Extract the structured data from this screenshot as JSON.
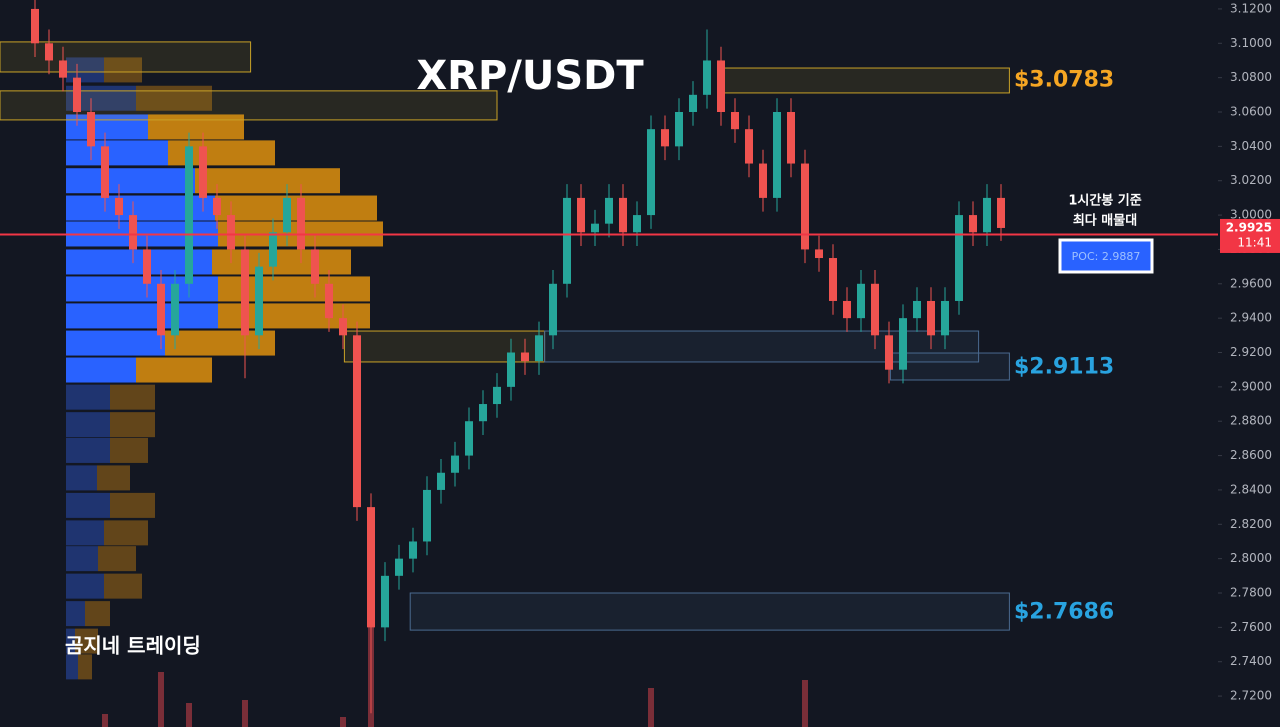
{
  "chart_data": {
    "type": "candlestick",
    "title": "XRP/USDT",
    "watermark": "곰지네 트레이딩",
    "annotation": [
      "1시간봉 기준",
      "최다 매물대"
    ],
    "poc": {
      "value": 2.9887,
      "label": "POC: 2.9887",
      "color": "#f23645"
    },
    "last_price": {
      "value": 2.9925,
      "label": "2.9925",
      "time": "11:41",
      "color": "#f23645"
    },
    "ylim": [
      2.702,
      3.1252
    ],
    "yticks": [
      {
        "value": 3.12,
        "label": "3.1200"
      },
      {
        "value": 3.1,
        "label": "3.1000"
      },
      {
        "value": 3.08,
        "label": "3.0800"
      },
      {
        "value": 3.06,
        "label": "3.0600"
      },
      {
        "value": 3.04,
        "label": "3.0400"
      },
      {
        "value": 3.02,
        "label": "3.0200"
      },
      {
        "value": 3.0,
        "label": "3.0000"
      },
      {
        "value": 2.98,
        "label": "2.9800"
      },
      {
        "value": 2.96,
        "label": "2.9600"
      },
      {
        "value": 2.94,
        "label": "2.9400"
      },
      {
        "value": 2.92,
        "label": "2.9200"
      },
      {
        "value": 2.9,
        "label": "2.9000"
      },
      {
        "value": 2.88,
        "label": "2.8800"
      },
      {
        "value": 2.86,
        "label": "2.8600"
      },
      {
        "value": 2.84,
        "label": "2.8400"
      },
      {
        "value": 2.82,
        "label": "2.8200"
      },
      {
        "value": 2.8,
        "label": "2.8000"
      },
      {
        "value": 2.78,
        "label": "2.7800"
      },
      {
        "value": 2.76,
        "label": "2.7600"
      },
      {
        "value": 2.74,
        "label": "2.7400"
      },
      {
        "value": 2.72,
        "label": "2.7200"
      }
    ],
    "up_color": "#26a69a",
    "down_color": "#ef5350",
    "open": [
      3.12,
      3.1,
      3.09,
      3.08,
      3.06,
      3.04,
      3.01,
      3.0,
      2.98,
      2.96,
      2.93,
      2.96,
      3.04,
      3.01,
      3.0,
      2.98,
      2.93,
      2.97,
      2.99,
      3.01,
      2.98,
      2.96,
      2.94,
      2.93,
      2.83,
      2.76,
      2.79,
      2.8,
      2.81,
      2.84,
      2.85,
      2.86,
      2.88,
      2.89,
      2.9,
      2.92,
      2.915,
      2.93,
      2.96,
      3.01,
      2.99,
      2.995,
      3.01,
      2.99,
      3.0,
      3.05,
      3.04,
      3.06,
      3.07,
      3.09,
      3.06,
      3.05,
      3.03,
      3.01,
      3.06,
      3.03,
      2.98,
      2.975,
      2.95,
      2.94,
      2.96,
      2.93,
      2.91,
      2.94,
      2.95,
      2.93,
      2.95,
      3.0,
      2.99,
      3.01
    ],
    "high": [
      3.128,
      3.108,
      3.098,
      3.088,
      3.068,
      3.048,
      3.018,
      3.008,
      2.988,
      2.968,
      2.968,
      3.048,
      3.048,
      3.018,
      3.008,
      2.988,
      2.978,
      2.998,
      3.018,
      3.018,
      2.988,
      2.968,
      2.948,
      2.938,
      2.838,
      2.798,
      2.808,
      2.818,
      2.848,
      2.858,
      2.868,
      2.888,
      2.898,
      2.908,
      2.928,
      2.928,
      2.938,
      2.968,
      3.018,
      3.018,
      3.003,
      3.018,
      3.018,
      3.008,
      3.058,
      3.058,
      3.068,
      3.078,
      3.108,
      3.098,
      3.068,
      3.058,
      3.038,
      3.068,
      3.068,
      3.038,
      2.988,
      2.983,
      2.958,
      2.968,
      2.968,
      2.938,
      2.948,
      2.958,
      2.958,
      2.958,
      3.008,
      3.008,
      3.018,
      3.018
    ],
    "low": [
      3.092,
      3.082,
      3.072,
      3.052,
      3.032,
      3.002,
      2.992,
      2.972,
      2.952,
      2.922,
      2.922,
      2.952,
      3.002,
      2.992,
      2.972,
      2.905,
      2.922,
      2.962,
      2.982,
      2.972,
      2.952,
      2.932,
      2.922,
      2.822,
      2.71,
      2.752,
      2.782,
      2.792,
      2.802,
      2.832,
      2.842,
      2.852,
      2.872,
      2.882,
      2.892,
      2.907,
      2.907,
      2.922,
      2.952,
      2.982,
      2.982,
      2.987,
      2.982,
      2.982,
      2.992,
      3.032,
      3.032,
      3.052,
      3.062,
      3.052,
      3.042,
      3.022,
      3.002,
      3.002,
      3.022,
      2.972,
      2.967,
      2.942,
      2.932,
      2.932,
      2.922,
      2.902,
      2.902,
      2.932,
      2.922,
      2.922,
      2.942,
      2.982,
      2.982,
      2.985
    ],
    "close": [
      3.1,
      3.09,
      3.08,
      3.06,
      3.04,
      3.01,
      3.0,
      2.98,
      2.96,
      2.93,
      2.96,
      3.04,
      3.01,
      3.0,
      2.98,
      2.93,
      2.97,
      2.99,
      3.01,
      2.98,
      2.96,
      2.94,
      2.93,
      2.83,
      2.76,
      2.79,
      2.8,
      2.81,
      2.84,
      2.85,
      2.86,
      2.88,
      2.89,
      2.9,
      2.92,
      2.915,
      2.93,
      2.96,
      3.01,
      2.99,
      2.995,
      3.01,
      2.99,
      3.0,
      3.05,
      3.04,
      3.06,
      3.07,
      3.09,
      3.06,
      3.05,
      3.03,
      3.01,
      3.06,
      3.03,
      2.98,
      2.975,
      2.95,
      2.94,
      2.96,
      2.93,
      2.91,
      2.94,
      2.95,
      2.93,
      2.95,
      3.0,
      2.99,
      3.01,
      2.9925
    ],
    "volume_bars": {
      "index": [
        5,
        9,
        11,
        15,
        22,
        24,
        44,
        55
      ],
      "values": [
        13,
        55,
        24,
        27,
        10,
        187,
        39,
        47
      ],
      "color": "#7a2e38"
    },
    "profile": {
      "levels": [
        3.0845,
        3.068,
        3.0513,
        3.0362,
        3.02,
        3.0041,
        2.989,
        2.9727,
        2.957,
        2.9413,
        2.9255,
        2.9098,
        2.894,
        2.878,
        2.863,
        2.847,
        2.831,
        2.815,
        2.8,
        2.784,
        2.768,
        2.752,
        2.737
      ],
      "buy": [
        38,
        70,
        82,
        102,
        129,
        149,
        152,
        146,
        152,
        152,
        99,
        70,
        44,
        44,
        44,
        31,
        44,
        38,
        32,
        38,
        19,
        9,
        12
      ],
      "sell": [
        38,
        76,
        96,
        107,
        145,
        162,
        165,
        139,
        152,
        152,
        110,
        76,
        45,
        45,
        38,
        33,
        45,
        44,
        38,
        38,
        25,
        23,
        14
      ],
      "value_area": [
        2.9098,
        3.0513
      ],
      "buy_color": "#2962ff",
      "sell_color": "#d4890f",
      "buy_dim_color": "#1f3470",
      "sell_dim_color": "#6b4a1a"
    },
    "zones": [
      {
        "top": 3.1008,
        "bottom": 3.0833,
        "start": -2.5,
        "end": 15.4,
        "color": "#c9a227"
      },
      {
        "top": 3.0723,
        "bottom": 3.0554,
        "start": -2.5,
        "end": 33,
        "color": "#c9a227"
      },
      {
        "top": 3.0856,
        "bottom": 3.0711,
        "start": 48.9,
        "end": 69.6,
        "color": "#c9a227"
      },
      {
        "top": 2.9325,
        "bottom": 2.9145,
        "start": 22.1,
        "end": 36.4,
        "color": "#c9a227"
      },
      {
        "top": 2.9325,
        "bottom": 2.9145,
        "start": 36.4,
        "end": 67.4,
        "color": "#4a6a90"
      },
      {
        "top": 2.9197,
        "bottom": 2.904,
        "start": 61.1,
        "end": 69.6,
        "color": "#4a6a90"
      },
      {
        "top": 2.78,
        "bottom": 2.7584,
        "start": 26.8,
        "end": 69.6,
        "color": "#4a6a90"
      }
    ],
    "price_labels": [
      {
        "value": 3.0783,
        "label": "$3.0783",
        "color": "#f5a623"
      },
      {
        "value": 2.9113,
        "label": "$2.9113",
        "color": "#29a3e0"
      },
      {
        "value": 2.7686,
        "label": "$2.7686",
        "color": "#29a3e0"
      }
    ]
  }
}
